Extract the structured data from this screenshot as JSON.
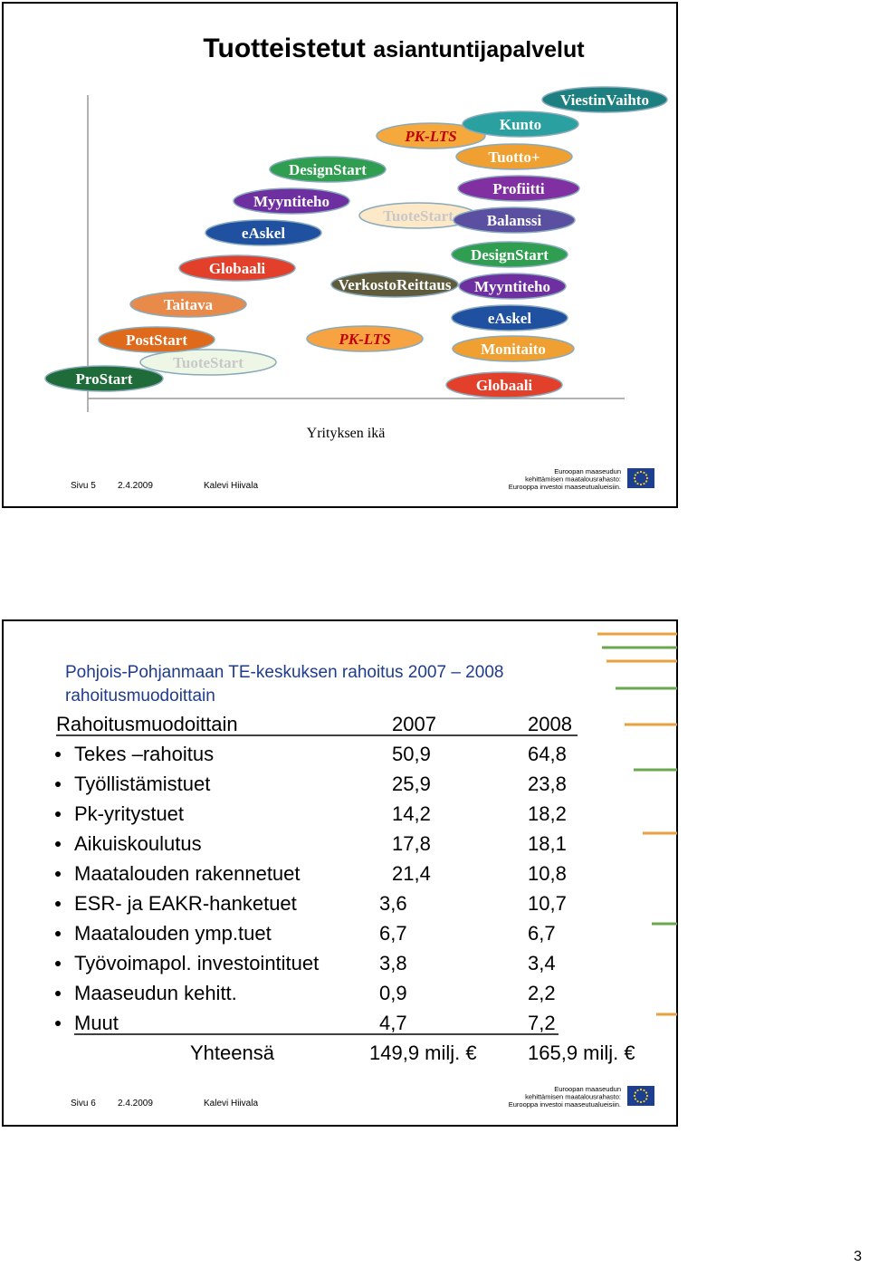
{
  "slides": [
    {
      "title_bold": "Tuotteistetut",
      "title_rest": "asiantuntijapalvelut",
      "items": [
        "ProStart",
        "TuoteStart",
        "PostStart",
        "Taitava",
        "Globaali",
        "eAskel",
        "Myyntiteho",
        "DesignStart",
        "PK-LTS",
        "TuoteStart",
        "VerkostoReittaus",
        "PK-LTS",
        "ViestinVaihto",
        "Kunto",
        "Tuotto+",
        "Profiitti",
        "Balanssi",
        "DesignStart",
        "Myyntiteho",
        "eAskel",
        "Monitaito",
        "Globaali"
      ],
      "axis_label": "Yrityksen ikä",
      "footer": {
        "page": "Sivu 5",
        "date": "2.4.2009",
        "author": "Kalevi Hiivala"
      },
      "eu_text": [
        "Euroopan maaseudun",
        "kehittämisen maatalousrahasto:",
        "Eurooppa investoi maaseutualueisiin."
      ]
    },
    {
      "heading": [
        "Pohjois-Pohjanmaan TE-keskuksen rahoitus 2007 – 2008",
        "rahoitusmuodoittain"
      ],
      "table": {
        "header": [
          "Rahoitusmuodoittain",
          "2007",
          "2008"
        ],
        "rows": [
          [
            "Tekes –rahoitus",
            "50,9",
            "64,8"
          ],
          [
            "Työllistämistuet",
            "25,9",
            "23,8"
          ],
          [
            "Pk-yritystuet",
            "14,2",
            "18,2"
          ],
          [
            "Aikuiskoulutus",
            "17,8",
            "18,1"
          ],
          [
            "Maatalouden rakennetuet",
            "21,4",
            "10,8"
          ],
          [
            "ESR- ja EAKR-hanketuet",
            "3,6",
            "10,7"
          ],
          [
            "Maatalouden ymp.tuet",
            "6,7",
            "6,7"
          ],
          [
            "Työvoimapol. investointituet",
            "3,8",
            "3,4"
          ],
          [
            "Maaseudun kehitt.",
            "0,9",
            "2,2"
          ],
          [
            "Muut",
            "4,7",
            "7,2"
          ]
        ],
        "total": [
          "Yhteensä",
          "149,9 milj. €",
          "165,9 milj. €"
        ]
      },
      "footer": {
        "page": "Sivu 6",
        "date": "2.4.2009",
        "author": "Kalevi Hiivala"
      },
      "eu_text": [
        "Euroopan maaseudun",
        "kehittämisen maatalousrahasto:",
        "Eurooppa investoi maaseutualueisiin."
      ]
    }
  ],
  "page_number": "3"
}
